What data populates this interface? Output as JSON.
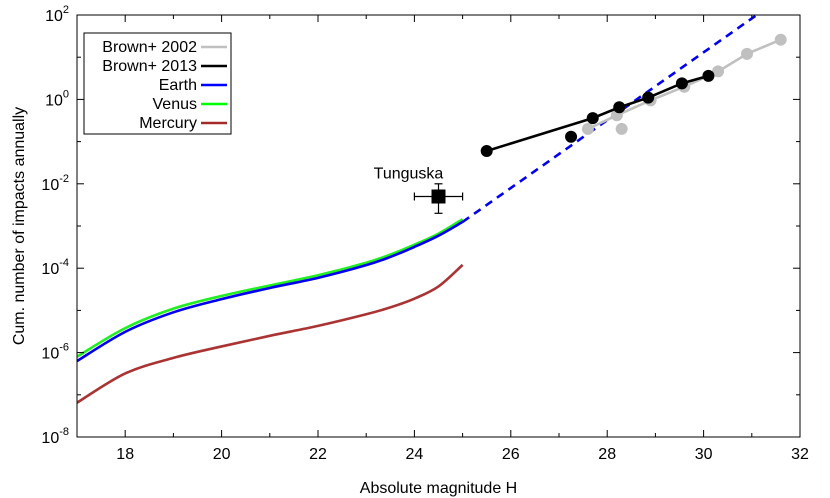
{
  "chart_data": {
    "type": "line",
    "xlabel": "Absolute magnitude H",
    "ylabel": "Cum. number of impacts annually",
    "xlim": [
      17,
      32
    ],
    "ylim": [
      1e-08,
      100
    ],
    "yscale": "log",
    "grid": false,
    "legend_placement": "top-left",
    "x_ticks": [
      "18",
      "20",
      "22",
      "24",
      "26",
      "28",
      "30",
      "32"
    ],
    "y_ticks": [
      {
        "base": "10",
        "exp": "-8"
      },
      {
        "base": "10",
        "exp": "-6"
      },
      {
        "base": "10",
        "exp": "-4"
      },
      {
        "base": "10",
        "exp": "-2"
      },
      {
        "base": "10",
        "exp": "0"
      },
      {
        "base": "10",
        "exp": "2"
      }
    ],
    "legend": [
      {
        "label": "Brown+ 2002",
        "color": "#c0c0c0"
      },
      {
        "label": "Brown+ 2013",
        "color": "#000000"
      },
      {
        "label": "Earth",
        "color": "#0000ff"
      },
      {
        "label": "Venus",
        "color": "#00ff00"
      },
      {
        "label": "Mercury",
        "color": "#a52a2a"
      }
    ],
    "series": [
      {
        "name": "Venus",
        "color": "#22ee22",
        "style": "line",
        "x": [
          17,
          18,
          19,
          20,
          21,
          22,
          23,
          23.5,
          24,
          24.5,
          25
        ],
        "y": [
          8e-07,
          3.8e-06,
          1.1e-05,
          2.2e-05,
          3.9e-05,
          6.8e-05,
          0.000135,
          0.00021,
          0.00036,
          0.00066,
          0.00145
        ]
      },
      {
        "name": "Earth",
        "color": "#0000ee",
        "style": "line",
        "x": [
          17,
          18,
          19,
          20,
          21,
          22,
          23,
          23.5,
          24,
          24.5,
          25
        ],
        "y": [
          6.3e-07,
          3.1e-06,
          9e-06,
          1.85e-05,
          3.4e-05,
          5.9e-05,
          0.000118,
          0.000185,
          0.00032,
          0.00059,
          0.00125
        ]
      },
      {
        "name": "Earth",
        "color": "#0000ee",
        "style": "dashed",
        "x": [
          25,
          31.2
        ],
        "y": [
          0.00125,
          120
        ]
      },
      {
        "name": "Mercury",
        "color": "#aa3333",
        "style": "line",
        "x": [
          17,
          18,
          19,
          20,
          21,
          22,
          23,
          23.5,
          24,
          24.5,
          25
        ],
        "y": [
          6.5e-08,
          3.2e-07,
          7.5e-07,
          1.4e-06,
          2.5e-06,
          4.3e-06,
          8.1e-06,
          1.18e-05,
          1.9e-05,
          3.7e-05,
          0.00012
        ]
      },
      {
        "name": "Brown+ 2002",
        "color": "#c0c0c0",
        "style": "line-points",
        "x": [
          27.6,
          28.2,
          28.9,
          29.6,
          30.3,
          30.9,
          31.6
        ],
        "y": [
          0.2,
          0.42,
          0.95,
          2,
          4.6,
          12,
          26
        ]
      },
      {
        "name": "Brown+ 2002",
        "color": "#c0c0c0",
        "style": "points",
        "x": [
          28.3
        ],
        "y": [
          0.2
        ]
      },
      {
        "name": "Brown+ 2013",
        "color": "#000000",
        "style": "line-points",
        "x": [
          25.5,
          27.7,
          28.25,
          28.85,
          29.55,
          30.1
        ],
        "y": [
          0.06,
          0.36,
          0.65,
          1.1,
          2.4,
          3.6
        ]
      },
      {
        "name": "Brown+ 2013",
        "color": "#000000",
        "style": "points",
        "x": [
          27.25
        ],
        "y": [
          0.13
        ]
      }
    ],
    "annotations": [
      {
        "text": "Tunguska",
        "x": 24.5,
        "y": 0.005,
        "y_low": 0.002,
        "y_high": 0.01,
        "x_low": 24.0,
        "x_high": 25.0,
        "marker": "square"
      }
    ]
  }
}
